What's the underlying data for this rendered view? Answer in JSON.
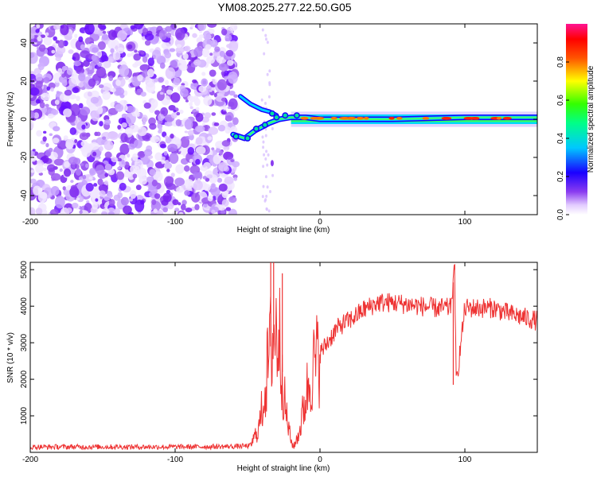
{
  "title": "YM08.2025.277.22.50.G05",
  "chart_data": [
    {
      "type": "heatmap",
      "xlabel": "Height of straight line (km)",
      "ylabel": "Frequency (Hz)",
      "xlim": [
        -200,
        150
      ],
      "ylim": [
        -50,
        50
      ],
      "xticks": [
        "-200",
        "-100",
        "0",
        "100"
      ],
      "yticks": [
        "40",
        "20",
        "0",
        "-20",
        "-40"
      ],
      "colorbar": {
        "label": "Normalized spectral amplitude",
        "range": [
          0,
          1
        ],
        "ticks": [
          "0.0",
          "0.2",
          "0.4",
          "0.6",
          "0.8"
        ]
      },
      "signal_track": [
        {
          "x": -60,
          "y": -8
        },
        {
          "x": -52,
          "y": -10
        },
        {
          "x": -45,
          "y": -6
        },
        {
          "x": -40,
          "y": -4
        },
        {
          "x": -35,
          "y": -2
        },
        {
          "x": -28,
          "y": 0
        },
        {
          "x": -20,
          "y": 1
        },
        {
          "x": -10,
          "y": 1
        },
        {
          "x": 0,
          "y": 0
        },
        {
          "x": 50,
          "y": 0
        },
        {
          "x": 100,
          "y": 1
        },
        {
          "x": 150,
          "y": 1
        }
      ],
      "upper_branch": [
        {
          "x": -55,
          "y": 12
        },
        {
          "x": -48,
          "y": 8
        },
        {
          "x": -40,
          "y": 5
        },
        {
          "x": -35,
          "y": 4
        },
        {
          "x": -30,
          "y": 2
        }
      ]
    },
    {
      "type": "line",
      "xlabel": "Height of straight line (km)",
      "ylabel": "SNR (10 * v/v)",
      "xlim": [
        -200,
        150
      ],
      "ylim": [
        0,
        5200
      ],
      "xticks": [
        "-200",
        "-100",
        "0",
        "100"
      ],
      "yticks": [
        "5000",
        "4000",
        "3000",
        "2000",
        "1000"
      ],
      "series": [
        {
          "name": "SNR",
          "color": "#ee3333",
          "x": [
            -200,
            -150,
            -100,
            -60,
            -48,
            -42,
            -38,
            -35,
            -32,
            -28,
            -24,
            -20,
            -18,
            -14,
            -10,
            -6,
            0,
            5,
            10,
            15,
            20,
            30,
            40,
            50,
            60,
            70,
            80,
            90,
            93,
            94,
            100,
            110,
            120,
            130,
            140,
            150
          ],
          "values": [
            150,
            150,
            150,
            160,
            180,
            700,
            1700,
            2700,
            3300,
            3200,
            1200,
            300,
            150,
            600,
            1500,
            2200,
            2700,
            3000,
            3300,
            3500,
            3600,
            3900,
            4100,
            4100,
            4050,
            4000,
            3950,
            3950,
            5000,
            1850,
            3950,
            3950,
            3950,
            3800,
            3700,
            3600
          ],
          "spikes": [
            {
              "x": -34,
              "y": 5200
            },
            {
              "x": -32,
              "y": 5200
            },
            {
              "x": -26,
              "y": 4900
            },
            {
              "x": 93,
              "y": 5150
            },
            {
              "x": 92,
              "y": 1850
            }
          ]
        }
      ]
    }
  ]
}
